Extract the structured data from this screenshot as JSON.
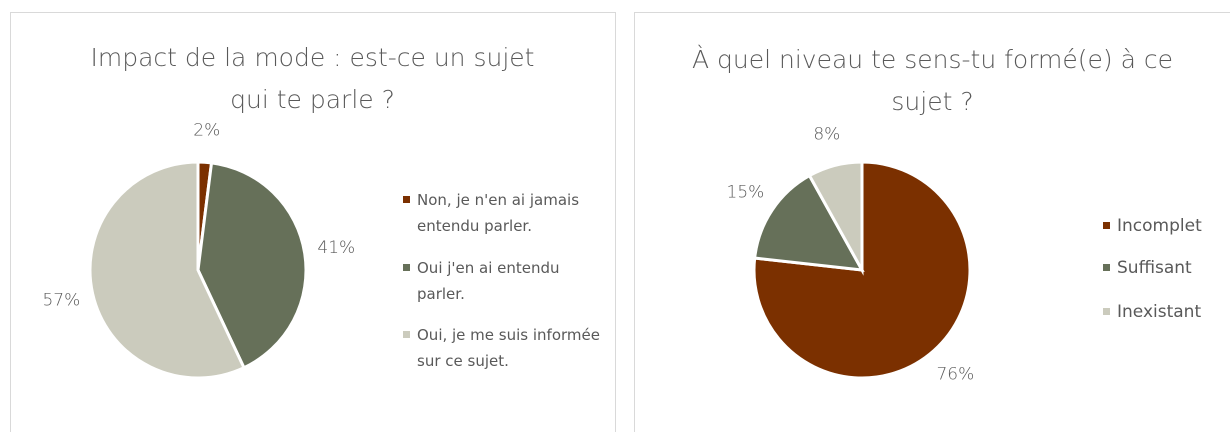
{
  "chart_data": [
    {
      "type": "pie",
      "title": "Impact de la mode : est-ce un sujet qui te parle ?",
      "categories": [
        "Non, je n'en ai jamais entendu parler.",
        "Oui j'en ai entendu parler.",
        "Oui, je me suis informée sur ce sujet."
      ],
      "values": [
        2,
        41,
        57
      ],
      "value_labels": [
        "2%",
        "41%",
        "57%"
      ],
      "colors": [
        "#7b3000",
        "#667059",
        "#cbcbbd"
      ],
      "legend": "right"
    },
    {
      "type": "pie",
      "title": "À quel niveau te sens-tu formé(e) à ce sujet ?",
      "categories": [
        "Incomplet",
        "Suffisant",
        "Inexistant"
      ],
      "values": [
        76,
        15,
        8
      ],
      "value_labels": [
        "76%",
        "15%",
        "8%"
      ],
      "colors": [
        "#7b3000",
        "#667059",
        "#cbcbbd"
      ],
      "legend": "right"
    }
  ]
}
